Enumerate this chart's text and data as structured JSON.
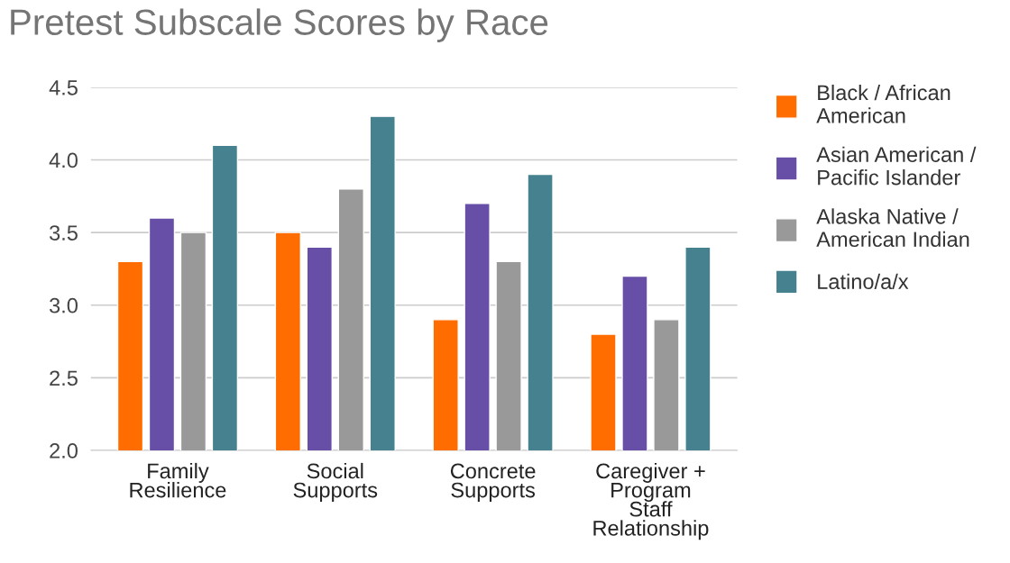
{
  "chart_data": {
    "type": "bar",
    "title": "Pretest Subscale Scores by Race",
    "categories": [
      "Family\nResilience",
      "Social\nSupports",
      "Concrete\nSupports",
      "Caregiver +\nProgram\nStaff\nRelationship"
    ],
    "series": [
      {
        "name": "Black / African\nAmerican",
        "color": "#ff6d01",
        "values": [
          3.3,
          3.5,
          2.9,
          2.8
        ]
      },
      {
        "name": "Asian American /\nPacific Islander",
        "color": "#674ea7",
        "values": [
          3.6,
          3.4,
          3.7,
          3.2
        ]
      },
      {
        "name": "Alaska Native /\nAmerican Indian",
        "color": "#999999",
        "values": [
          3.5,
          3.8,
          3.3,
          2.9
        ]
      },
      {
        "name": "Latino/a/x",
        "color": "#45818e",
        "values": [
          4.1,
          4.3,
          3.9,
          3.4
        ]
      }
    ],
    "ylim": [
      2.0,
      4.5
    ],
    "yticks": [
      {
        "value": 2.0,
        "label": "2.0"
      },
      {
        "value": 2.5,
        "label": "2.5"
      },
      {
        "value": 3.0,
        "label": "3.0"
      },
      {
        "value": 3.5,
        "label": "3.5"
      },
      {
        "value": 4.0,
        "label": "4.0"
      },
      {
        "value": 4.5,
        "label": "4.5"
      }
    ],
    "grid": "y",
    "legend": "right"
  }
}
